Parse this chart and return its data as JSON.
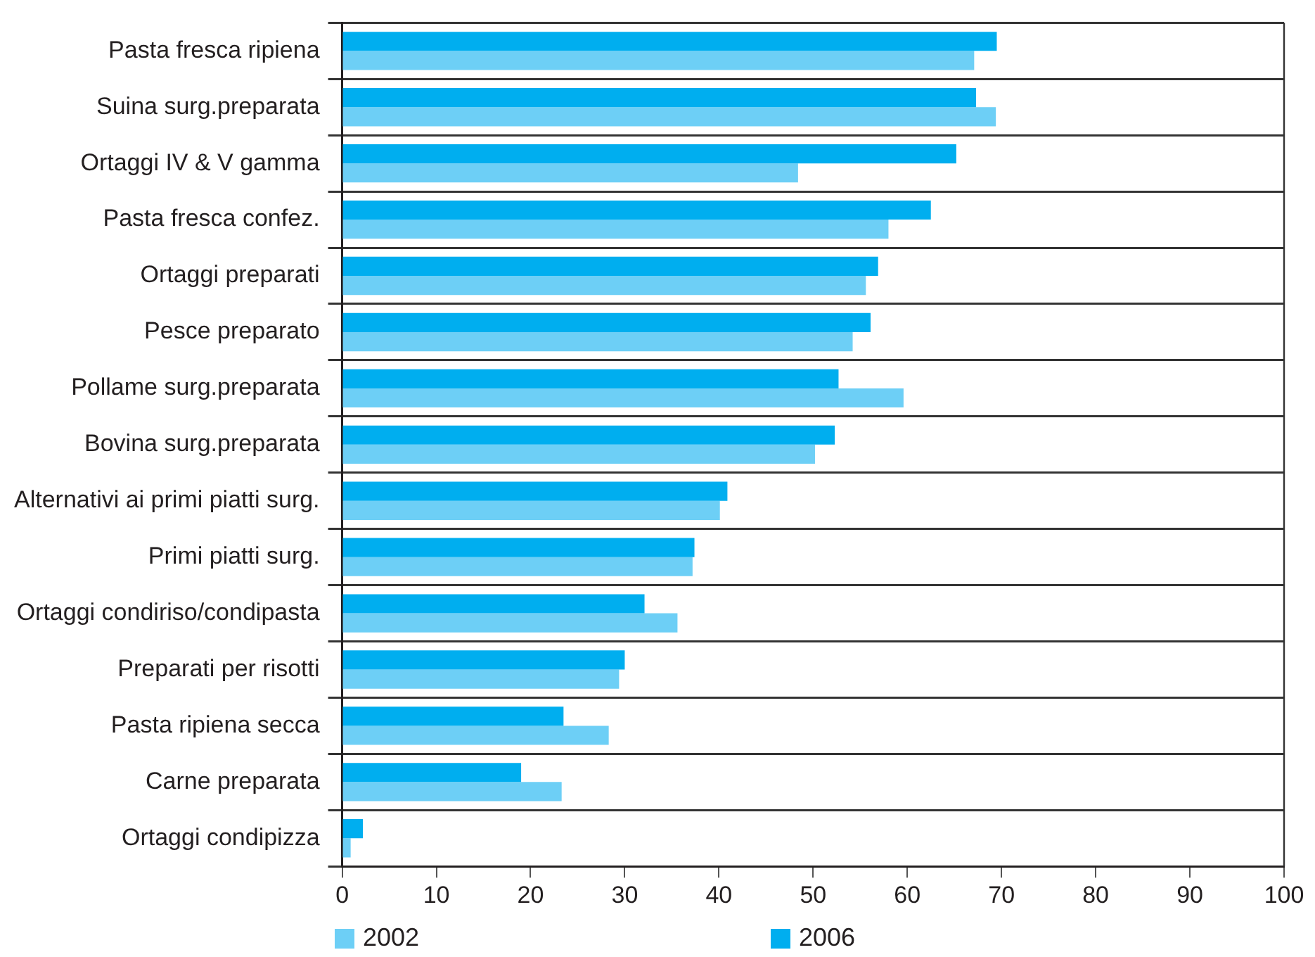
{
  "chart_data": {
    "type": "bar",
    "orientation": "horizontal",
    "categories": [
      "Pasta fresca ripiena",
      "Suina surg.preparata",
      "Ortaggi IV & V gamma",
      "Pasta fresca confez.",
      "Ortaggi preparati",
      "Pesce preparato",
      "Pollame surg.preparata",
      "Bovina surg.preparata",
      "Alternativi ai primi piatti surg.",
      "Primi piatti surg.",
      "Ortaggi condiriso/condipasta",
      "Preparati per risotti",
      "Pasta ripiena secca",
      "Carne preparata",
      "Ortaggi condipizza"
    ],
    "series": [
      {
        "name": "2002",
        "color": "#6dcff6",
        "values": [
          67.1,
          69.4,
          48.4,
          58.0,
          55.6,
          54.2,
          59.6,
          50.2,
          40.1,
          37.2,
          35.6,
          29.4,
          28.3,
          23.3,
          0.9
        ]
      },
      {
        "name": "2006",
        "color": "#00aeef",
        "values": [
          69.5,
          67.3,
          65.2,
          62.5,
          56.9,
          56.1,
          52.7,
          52.3,
          40.9,
          37.4,
          32.1,
          30.0,
          23.5,
          19.0,
          2.2
        ]
      }
    ],
    "xlim": [
      0,
      100
    ],
    "xticks": [
      0,
      10,
      20,
      30,
      40,
      50,
      60,
      70,
      80,
      90,
      100
    ],
    "grid": "y",
    "legend": "bottom"
  }
}
